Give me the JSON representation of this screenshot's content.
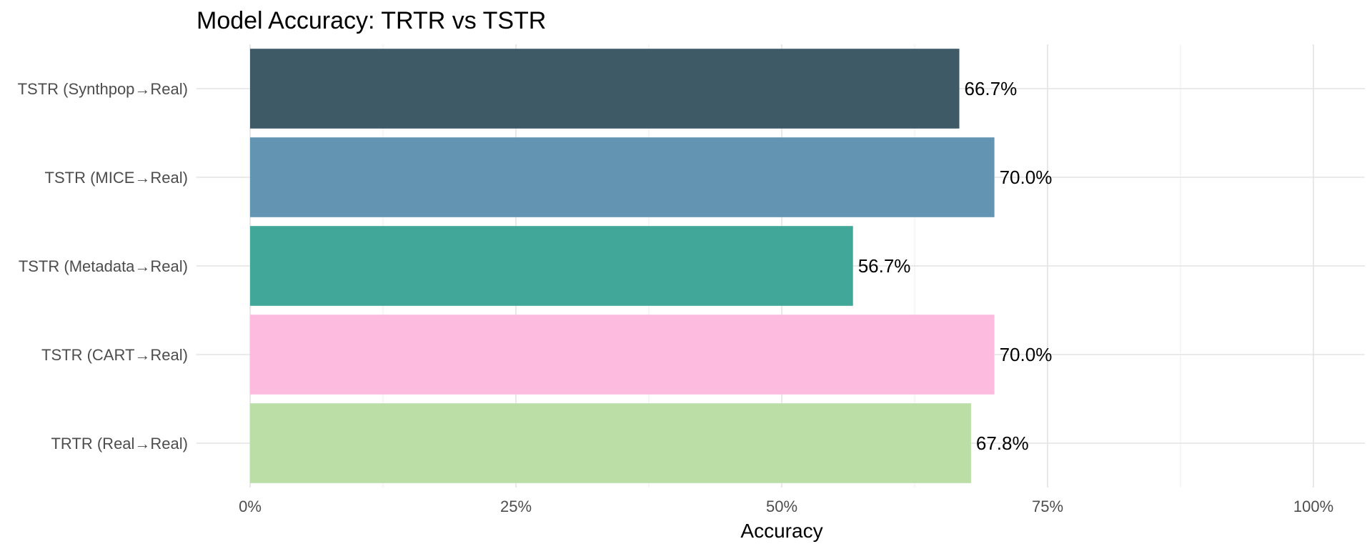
{
  "chart_data": {
    "type": "bar",
    "orientation": "horizontal",
    "title": "Model Accuracy: TRTR vs TSTR",
    "xlabel": "Accuracy",
    "ylabel": "",
    "xlim": [
      0,
      1
    ],
    "x_ticks": [
      0,
      0.25,
      0.5,
      0.75,
      1
    ],
    "x_tick_labels": [
      "0%",
      "25%",
      "50%",
      "75%",
      "100%"
    ],
    "grid": true,
    "legend": "none",
    "categories": [
      "TSTR (Synthpop→Real)",
      "TSTR (MICE→Real)",
      "TSTR (Metadata→Real)",
      "TSTR (CART→Real)",
      "TRTR (Real→Real)"
    ],
    "values": [
      0.667,
      0.7,
      0.567,
      0.7,
      0.678
    ],
    "data_labels": [
      "66.7%",
      "70.0%",
      "56.7%",
      "70.0%",
      "67.8%"
    ],
    "colors": [
      "#3e5a67",
      "#6395b3",
      "#40a799",
      "#fdbcdf",
      "#bbdda6"
    ]
  }
}
